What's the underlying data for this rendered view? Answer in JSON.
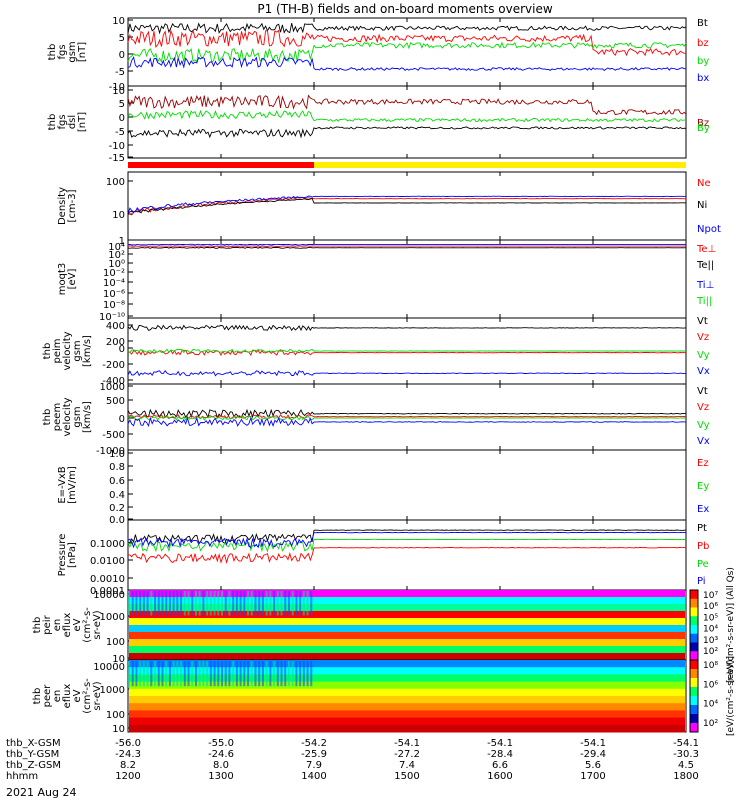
{
  "title": "P1 (TH-B) fields and on-board moments overview",
  "date_label": "2021 Aug 24",
  "colors": {
    "black": "#000000",
    "red": "#ff0000",
    "green": "#00dd00",
    "blue": "#0000ff",
    "darkred": "#990000",
    "yellow": "#ffee00",
    "brightred": "#ff0000"
  },
  "chart_data": {
    "type": "line",
    "x_range": [
      1200,
      1800
    ],
    "x_ticks": [
      "1200",
      "1300",
      "1400",
      "1500",
      "1600",
      "1700",
      "1800"
    ],
    "orbit_rows": [
      {
        "label": "thb_X-GSM",
        "values": [
          "-56.0",
          "-55.0",
          "-54.2",
          "-54.1",
          "-54.1",
          "-54.1",
          "-54.1"
        ]
      },
      {
        "label": "thb_Y-GSM",
        "values": [
          "-24.3",
          "-24.6",
          "-25.9",
          "-27.2",
          "-28.4",
          "-29.4",
          "-30.3"
        ]
      },
      {
        "label": "thb_Z-GSM",
        "values": [
          "8.2",
          "8.0",
          "7.9",
          "7.4",
          "6.6",
          "5.6",
          "4.5"
        ]
      },
      {
        "label": "hhmm",
        "values": [
          "1200",
          "1300",
          "1400",
          "1500",
          "1600",
          "1700",
          "1800"
        ]
      }
    ],
    "panels": [
      {
        "id": "fgs-gsm",
        "ylabel": [
          "thb",
          "fgs",
          "gsm",
          "[nT]"
        ],
        "yticks": [
          "10",
          "5",
          "0",
          "-5",
          "-10"
        ],
        "series": [
          {
            "name": "Bt",
            "color": "black"
          },
          {
            "name": "bz",
            "color": "red"
          },
          {
            "name": "by",
            "color": "green"
          },
          {
            "name": "bx",
            "color": "blue"
          }
        ]
      },
      {
        "id": "fgs-dsl",
        "ylabel": [
          "thb",
          "fgs",
          "dsl",
          "[nT]"
        ],
        "yticks": [
          "10",
          "5",
          "0",
          "-5",
          "-10",
          "-15"
        ],
        "series": [
          {
            "name": "Bz",
            "color": "darkred"
          },
          {
            "name": "By",
            "color": "green"
          }
        ]
      },
      {
        "id": "density",
        "ylabel": [
          "Density",
          "[cm-3]"
        ],
        "yticks": [
          "100",
          "10",
          "1"
        ],
        "series": [
          {
            "name": "Ne",
            "color": "red"
          },
          {
            "name": "Ni",
            "color": "black"
          },
          {
            "name": "Npot",
            "color": "blue"
          }
        ]
      },
      {
        "id": "moqt3",
        "ylabel": [
          "moqt3",
          "[eV]"
        ],
        "yticks": [
          "10⁴",
          "10²",
          "10⁰",
          "10⁻²",
          "10⁻⁴",
          "10⁻⁶",
          "10⁻⁸",
          "10⁻¹⁰"
        ],
        "series": [
          {
            "name": "Te⊥",
            "color": "red"
          },
          {
            "name": "Te||",
            "color": "black"
          },
          {
            "name": "Ti⊥",
            "color": "blue"
          },
          {
            "name": "Ti||",
            "color": "green"
          }
        ]
      },
      {
        "id": "peim",
        "ylabel": [
          "thb",
          "peim",
          "velocity",
          "gsm",
          "[km/s]"
        ],
        "yticks": [
          "400",
          "200",
          "0",
          "-200",
          "-400"
        ],
        "series": [
          {
            "name": "Vt",
            "color": "black"
          },
          {
            "name": "Vz",
            "color": "red"
          },
          {
            "name": "Vy",
            "color": "green"
          },
          {
            "name": "Vx",
            "color": "blue"
          }
        ]
      },
      {
        "id": "peem",
        "ylabel": [
          "thb",
          "peem",
          "velocity",
          "gsm",
          "[km/s]"
        ],
        "yticks": [
          "1000",
          "500",
          "0",
          "-500",
          "-1000"
        ],
        "series": [
          {
            "name": "Vt",
            "color": "black"
          },
          {
            "name": "Vz",
            "color": "red"
          },
          {
            "name": "Vy",
            "color": "green"
          },
          {
            "name": "Vx",
            "color": "blue"
          }
        ]
      },
      {
        "id": "efield",
        "ylabel": [
          "E=-VxB",
          "[mV/m]"
        ],
        "yticks": [
          "1.0",
          "0.8",
          "0.6",
          "0.4",
          "0.2",
          "0.0"
        ],
        "series": [
          {
            "name": "Ez",
            "color": "red"
          },
          {
            "name": "Ey",
            "color": "green"
          },
          {
            "name": "Ex",
            "color": "blue"
          }
        ]
      },
      {
        "id": "pressure",
        "ylabel": [
          "Pressure",
          "[nPa]"
        ],
        "yticks": [
          "0.1000",
          "0.0100",
          "0.0010",
          "0.0001"
        ],
        "series": [
          {
            "name": "Pt",
            "color": "black"
          },
          {
            "name": "Pb",
            "color": "red"
          },
          {
            "name": "Pe",
            "color": "green"
          },
          {
            "name": "Pi",
            "color": "blue"
          }
        ]
      },
      {
        "id": "peir",
        "ylabel": [
          "thb",
          "peir",
          "en",
          "eflux",
          "eV",
          "(cm²-s-",
          "sr-eV)"
        ],
        "yticks": [
          "10000",
          "1000",
          "100",
          "10"
        ],
        "colorbar_ticks": [
          "10⁷",
          "10⁶",
          "10⁵",
          "10⁴",
          "10³",
          "10²"
        ],
        "colorbar_label": "[eV/(cm²-s-sr-eV)] (All Qs)"
      },
      {
        "id": "peer",
        "ylabel": [
          "thb",
          "peer",
          "en",
          "eflux",
          "eV",
          "(cm²-s-",
          "sr-eV)"
        ],
        "yticks": [
          "10000",
          "1000",
          "100",
          "10"
        ],
        "colorbar_ticks": [
          "10⁸",
          "10⁶",
          "10⁴",
          "10²"
        ],
        "colorbar_label": "[eV/(cm²-s-sr-eV)]"
      }
    ],
    "mode_bar": {
      "red_until": 1400,
      "yellow_from": 1400
    }
  }
}
